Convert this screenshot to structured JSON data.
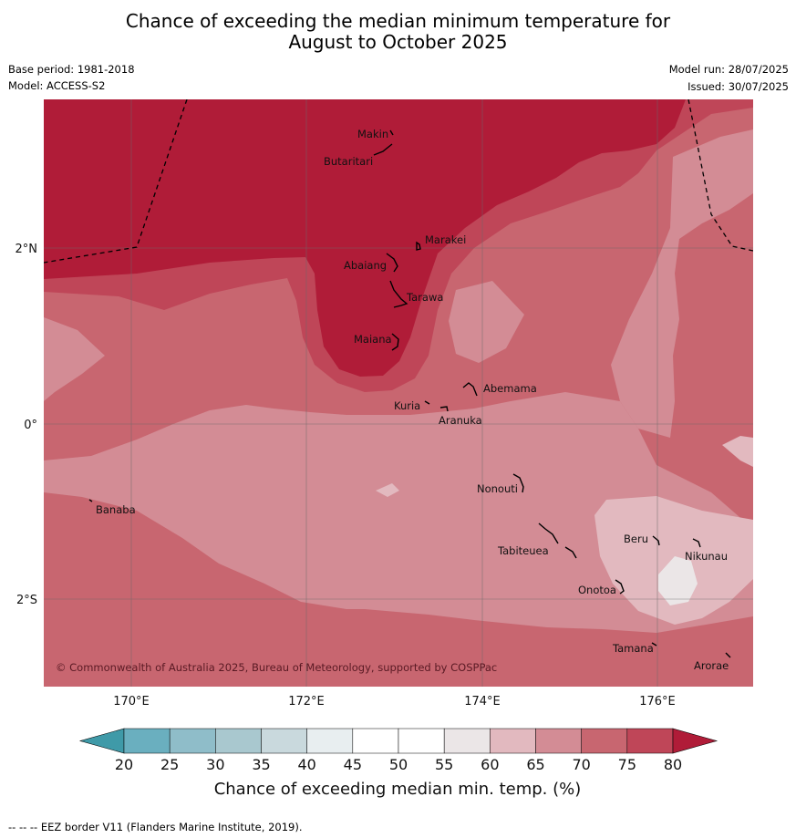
{
  "title": {
    "line1": "Chance of exceeding the median minimum temperature for",
    "line2": "August to October 2025"
  },
  "meta": {
    "base_period": "Base period: 1981-2018",
    "model": "Model: ACCESS-S2",
    "model_run": "Model run: 28/07/2025",
    "issued": "Issued: 30/07/2025"
  },
  "map": {
    "x_ticks": [
      "170°E",
      "172°E",
      "174°E",
      "176°E"
    ],
    "y_ticks": [
      "2°N",
      "0°",
      "2°S"
    ],
    "places": [
      "Makin",
      "Butaritari",
      "Marakei",
      "Abaiang",
      "Tarawa",
      "Maiana",
      "Abemama",
      "Kuria",
      "Aranuka",
      "Nonouti",
      "Banaba",
      "Beru",
      "Nikunau",
      "Tabiteuea",
      "Onotoa",
      "Tamana",
      "Arorae"
    ],
    "copyright": "© Commonwealth of Australia 2025, Bureau of Meteorology, supported by COSPPac"
  },
  "colorbar": {
    "ticks": [
      "20",
      "25",
      "30",
      "35",
      "40",
      "45",
      "50",
      "55",
      "60",
      "65",
      "70",
      "75",
      "80"
    ],
    "colors": [
      "#3f9aa8",
      "#6aafbf",
      "#8fbdc9",
      "#a9c8cf",
      "#c9d9dd",
      "#e8eef0",
      "#ffffff",
      "#ffffff",
      "#ebe6e7",
      "#e2b9bf",
      "#d38c95",
      "#c86670",
      "#bf4658",
      "#b01c38"
    ],
    "label": "Chance of exceeding median min. temp. (%)"
  },
  "footer": "--  --  -- EEZ border V11 (Flanders Marine Institute, 2019)."
}
